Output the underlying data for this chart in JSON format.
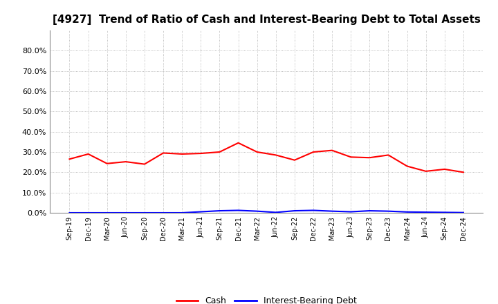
{
  "title": "[4927]  Trend of Ratio of Cash and Interest-Bearing Debt to Total Assets",
  "x_labels": [
    "Sep-19",
    "Dec-19",
    "Mar-20",
    "Jun-20",
    "Sep-20",
    "Dec-20",
    "Mar-21",
    "Jun-21",
    "Sep-21",
    "Dec-21",
    "Mar-22",
    "Jun-22",
    "Sep-22",
    "Dec-22",
    "Mar-23",
    "Jun-23",
    "Sep-23",
    "Dec-23",
    "Mar-24",
    "Jun-24",
    "Sep-24",
    "Dec-24"
  ],
  "cash": [
    0.265,
    0.29,
    0.243,
    0.252,
    0.24,
    0.295,
    0.29,
    0.293,
    0.3,
    0.345,
    0.3,
    0.285,
    0.26,
    0.3,
    0.308,
    0.275,
    0.272,
    0.285,
    0.23,
    0.205,
    0.215,
    0.2
  ],
  "debt": [
    0.0,
    0.0,
    0.0,
    0.0,
    0.0,
    0.0,
    0.0,
    0.005,
    0.01,
    0.012,
    0.008,
    0.002,
    0.01,
    0.012,
    0.008,
    0.005,
    0.01,
    0.008,
    0.004,
    0.003,
    0.002,
    0.001
  ],
  "cash_color": "#ff0000",
  "debt_color": "#0000ff",
  "background_color": "#ffffff",
  "grid_color": "#aaaaaa",
  "ylim": [
    0.0,
    0.9
  ],
  "yticks": [
    0.0,
    0.1,
    0.2,
    0.3,
    0.4,
    0.5,
    0.6,
    0.7,
    0.8
  ],
  "title_fontsize": 11,
  "legend_labels": [
    "Cash",
    "Interest-Bearing Debt"
  ],
  "line_width": 1.5
}
